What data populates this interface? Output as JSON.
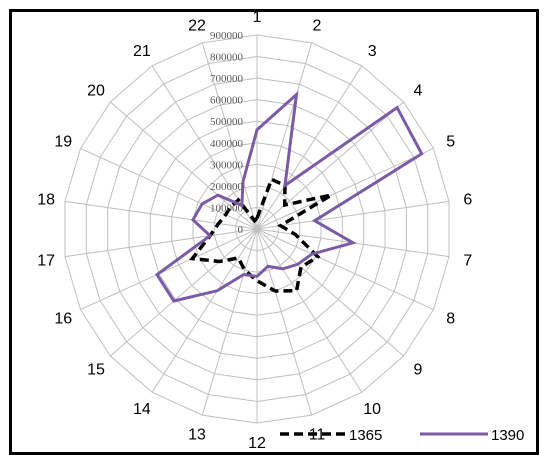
{
  "chart_data": {
    "type": "radar",
    "categories": [
      "1",
      "2",
      "3",
      "4",
      "5",
      "6",
      "7",
      "8",
      "9",
      "10",
      "11",
      "12",
      "13",
      "14",
      "15",
      "16",
      "17",
      "18",
      "19",
      "20",
      "21",
      "22"
    ],
    "rlim": [
      0,
      900000
    ],
    "rticks": [
      "0",
      "100000",
      "200000",
      "300000",
      "400000",
      "500000",
      "600000",
      "700000",
      "800000",
      "900000"
    ],
    "rtick_values": [
      0,
      100000,
      200000,
      300000,
      400000,
      500000,
      600000,
      700000,
      800000,
      900000
    ],
    "grid": true,
    "legend_position": "bottom-right",
    "series": [
      {
        "name": "1365",
        "color": "#000000",
        "style": "dashed",
        "values": [
          50000,
          240000,
          240000,
          170000,
          380000,
          110000,
          180000,
          310000,
          270000,
          340000,
          300000,
          240000,
          200000,
          160000,
          230000,
          330000,
          220000,
          180000,
          160000,
          160000,
          160000,
          40000
        ]
      },
      {
        "name": "1390",
        "color": "#7B5BA5",
        "style": "solid",
        "values": [
          460000,
          650000,
          240000,
          860000,
          840000,
          270000,
          450000,
          280000,
          250000,
          220000,
          180000,
          220000,
          220000,
          340000,
          510000,
          510000,
          220000,
          300000,
          280000,
          240000,
          130000,
          230000
        ]
      }
    ]
  }
}
